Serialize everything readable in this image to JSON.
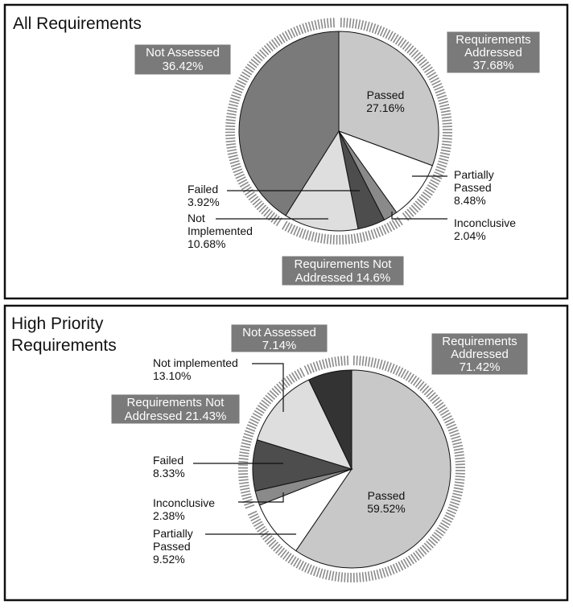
{
  "chart_data": [
    {
      "type": "pie",
      "title": "All Requirements",
      "slices": [
        {
          "name": "Passed",
          "value": 27.16,
          "color": "#c8c8c8"
        },
        {
          "name": "Partially Passed",
          "value": 8.48,
          "color": "#ffffff"
        },
        {
          "name": "Inconclusive",
          "value": 2.04,
          "color": "#8a8a8a"
        },
        {
          "name": "Failed",
          "value": 3.92,
          "color": "#4d4d4d"
        },
        {
          "name": "Not Implemented",
          "value": 10.68,
          "color": "#dedede"
        },
        {
          "name": "Not Assessed",
          "value": 36.42,
          "color": "#7a7a7a"
        }
      ],
      "labels": {
        "passed": {
          "name": "Passed",
          "value": "27.16%"
        },
        "partially_passed": {
          "line1": "Partially",
          "line2": "Passed",
          "value": "8.48%"
        },
        "inconclusive": {
          "name": "Inconclusive",
          "value": "2.04%"
        },
        "failed": {
          "name": "Failed",
          "value": "3.92%"
        },
        "not_implemented": {
          "line1": "Not",
          "line2": "Implemented",
          "value": "10.68%"
        }
      },
      "groups": [
        {
          "line1": "Requirements",
          "line2": "Addressed",
          "line3": "37.68%",
          "value": 37.68
        },
        {
          "line1": "Requirements Not",
          "line2": "Addressed 14.6%",
          "value": 14.6
        },
        {
          "line1": "Not Assessed",
          "line2": "36.42%",
          "value": 36.42
        }
      ]
    },
    {
      "type": "pie",
      "title_line1": "High Priority",
      "title_line2": "Requirements",
      "slices": [
        {
          "name": "Passed",
          "value": 59.52,
          "color": "#c8c8c8"
        },
        {
          "name": "Partially Passed",
          "value": 9.52,
          "color": "#ffffff"
        },
        {
          "name": "Inconclusive",
          "value": 2.38,
          "color": "#8a8a8a"
        },
        {
          "name": "Failed",
          "value": 8.33,
          "color": "#4d4d4d"
        },
        {
          "name": "Not implemented",
          "value": 13.1,
          "color": "#dedede"
        },
        {
          "name": "Not Assessed",
          "value": 7.14,
          "color": "#333333"
        }
      ],
      "labels": {
        "passed": {
          "name": "Passed",
          "value": "59.52%"
        },
        "partially_passed": {
          "line1": "Partially",
          "line2": "Passed",
          "value": "9.52%"
        },
        "inconclusive": {
          "name": "Inconclusive",
          "value": "2.38%"
        },
        "failed": {
          "name": "Failed",
          "value": "8.33%"
        },
        "not_implemented": {
          "name": "Not implemented",
          "value": "13.10%"
        }
      },
      "groups": [
        {
          "line1": "Requirements",
          "line2": "Addressed",
          "line3": "71.42%",
          "value": 71.42
        },
        {
          "line1": "Requirements Not",
          "line2": "Addressed 21.43%",
          "value": 21.43
        },
        {
          "line1": "Not Assessed",
          "line2": "7.14%",
          "value": 7.14
        }
      ]
    }
  ]
}
